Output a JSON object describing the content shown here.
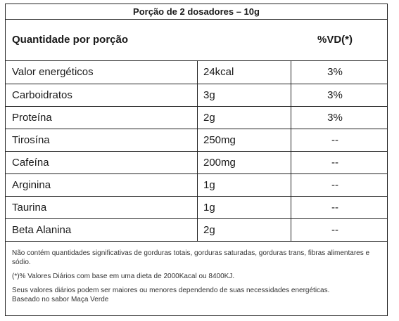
{
  "serving": "Porção de 2 dosadores – 10g",
  "header": {
    "left": "Quantidade por porção",
    "right": "%VD(*)"
  },
  "rows": [
    {
      "name": "Valor energéticos",
      "amount": "24kcal",
      "vd": "3%"
    },
    {
      "name": "Carboidratos",
      "amount": "3g",
      "vd": "3%"
    },
    {
      "name": "Proteína",
      "amount": "2g",
      "vd": "3%"
    },
    {
      "name": "Tirosína",
      "amount": "250mg",
      "vd": "--"
    },
    {
      "name": "Cafeína",
      "amount": "200mg",
      "vd": "--"
    },
    {
      "name": "Arginina",
      "amount": "1g",
      "vd": "--"
    },
    {
      "name": "Taurina",
      "amount": "1g",
      "vd": "--"
    },
    {
      "name": "Beta Alanina",
      "amount": "2g",
      "vd": "--"
    }
  ],
  "notes": {
    "line1": "Não contém quantidades significativas de gorduras totais, gorduras saturadas, gorduras trans, fibras alimentares e sódio.",
    "line2": "(*)% Valores Diários com base em uma dieta de 2000Kacal ou 8400KJ.",
    "line3a": "Seus valores diários podem ser maiores ou menores dependendo de suas necessidades energéticas.",
    "line3b": "Baseado no sabor Maça Verde"
  }
}
